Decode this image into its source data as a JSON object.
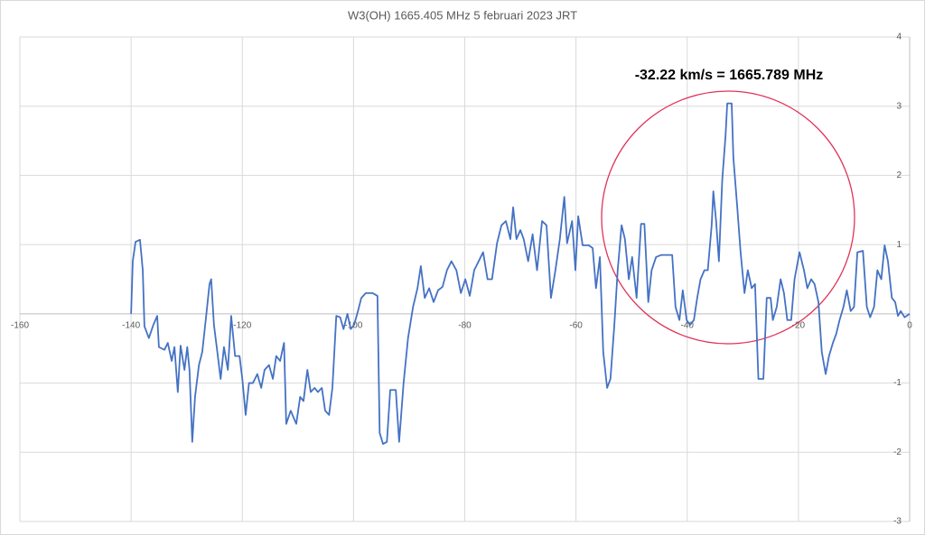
{
  "chart_data": {
    "type": "line",
    "title": "W3(OH) 1665.405 MHz 5 februari 2023 JRT",
    "annotation": "-32.22 km/s = 1665.789 MHz",
    "color": "#4472c4",
    "grid": true,
    "xlim": [
      -160,
      0
    ],
    "ylim": [
      -3,
      4
    ],
    "xticks": [
      -160,
      -140,
      -120,
      -100,
      -80,
      -60,
      -40,
      -20,
      0
    ],
    "yticks": [
      -3,
      -2,
      -1,
      1,
      2,
      3,
      4
    ],
    "x": [
      -140,
      -139.7,
      -139.2,
      -138.4,
      -137.9,
      -137.6,
      -136.8,
      -136,
      -135.3,
      -135,
      -134,
      -133.4,
      -132.7,
      -132.2,
      -131.6,
      -131.1,
      -130.4,
      -129.9,
      -129.5,
      -129,
      -128.5,
      -127.8,
      -127.2,
      -126.5,
      -125.9,
      -125.6,
      -125.1,
      -124.6,
      -123.9,
      -123.3,
      -122.6,
      -122,
      -121.3,
      -120.5,
      -120,
      -119.4,
      -118.8,
      -118.1,
      -117.3,
      -116.6,
      -116,
      -115.2,
      -114.5,
      -113.9,
      -113.2,
      -112.5,
      -112.1,
      -111.3,
      -110.3,
      -109.6,
      -109,
      -108.3,
      -107.7,
      -107,
      -106.4,
      -105.7,
      -105.1,
      -104.4,
      -103.8,
      -103.1,
      -102.4,
      -101.8,
      -101.1,
      -100.5,
      -99.9,
      -99.2,
      -98.6,
      -97.8,
      -96.6,
      -95.7,
      -95.3,
      -94.7,
      -94,
      -93.4,
      -92.4,
      -91.8,
      -91,
      -90.2,
      -89.3,
      -88.5,
      -87.9,
      -87.2,
      -86.4,
      -85.6,
      -84.8,
      -84,
      -83.2,
      -82.4,
      -81.5,
      -80.7,
      -79.9,
      -79.1,
      -78.3,
      -77.5,
      -76.7,
      -75.9,
      -75.1,
      -74.2,
      -73.4,
      -72.6,
      -71.8,
      -71.3,
      -70.7,
      -70,
      -69.4,
      -68.6,
      -67.8,
      -67,
      -66.1,
      -65.3,
      -64.5,
      -63.7,
      -62.9,
      -62.1,
      -61.6,
      -60.7,
      -60.1,
      -59.6,
      -58.8,
      -57.7,
      -57,
      -56.4,
      -55.7,
      -55.1,
      -54.4,
      -53.8,
      -53.1,
      -52.5,
      -51.8,
      -51.2,
      -50.5,
      -49.9,
      -49.1,
      -48.3,
      -47.7,
      -47,
      -46.4,
      -45.6,
      -44.7,
      -43.7,
      -42.7,
      -42.1,
      -41.4,
      -40.8,
      -40.1,
      -39.5,
      -38.8,
      -38.2,
      -37.6,
      -36.9,
      -36.3,
      -35.6,
      -35.3,
      -34.8,
      -34.3,
      -33.7,
      -33.1,
      -32.8,
      -32,
      -31.7,
      -31,
      -30.4,
      -29.7,
      -29.1,
      -28.4,
      -27.8,
      -27.2,
      -26.3,
      -25.7,
      -25,
      -24.6,
      -23.9,
      -23.2,
      -22.6,
      -22,
      -21.3,
      -20.7,
      -19.8,
      -19,
      -18.4,
      -17.7,
      -17.1,
      -16.4,
      -15.8,
      -15.1,
      -14.5,
      -13.8,
      -13.2,
      -12.6,
      -11.9,
      -11.3,
      -10.6,
      -10,
      -9.4,
      -8.4,
      -7.7,
      -7.1,
      -6.4,
      -5.8,
      -5.1,
      -4.5,
      -3.9,
      -3.2,
      -2.6,
      -2.1,
      -1.6,
      -0.9,
      0
    ],
    "values": [
      0,
      0.76,
      1.04,
      1.07,
      0.63,
      -0.18,
      -0.35,
      -0.16,
      -0.03,
      -0.48,
      -0.52,
      -0.42,
      -0.68,
      -0.48,
      -1.13,
      -0.46,
      -0.81,
      -0.48,
      -0.81,
      -1.85,
      -1.2,
      -0.74,
      -0.55,
      -0.03,
      0.43,
      0.5,
      -0.16,
      -0.48,
      -0.94,
      -0.48,
      -0.81,
      -0.03,
      -0.61,
      -0.61,
      -0.94,
      -1.46,
      -1,
      -1,
      -0.87,
      -1.07,
      -0.81,
      -0.74,
      -0.94,
      -0.61,
      -0.68,
      -0.42,
      -1.59,
      -1.4,
      -1.59,
      -1.2,
      -1.26,
      -0.81,
      -1.13,
      -1.07,
      -1.13,
      -1.07,
      -1.4,
      -1.46,
      -1.07,
      -0.03,
      -0.05,
      -0.22,
      0,
      -0.22,
      -0.16,
      0.04,
      0.23,
      0.3,
      0.3,
      0.26,
      -1.72,
      -1.88,
      -1.85,
      -1.1,
      -1.1,
      -1.85,
      -1,
      -0.35,
      0.1,
      0.37,
      0.69,
      0.23,
      0.37,
      0.17,
      0.34,
      0.39,
      0.63,
      0.76,
      0.63,
      0.3,
      0.5,
      0.26,
      0.63,
      0.76,
      0.89,
      0.5,
      0.5,
      1.02,
      1.28,
      1.34,
      1.08,
      1.54,
      1.08,
      1.21,
      1.08,
      0.76,
      1.15,
      0.63,
      1.34,
      1.28,
      0.23,
      0.63,
      1.08,
      1.69,
      1.02,
      1.34,
      0.63,
      1.41,
      0.99,
      0.99,
      0.95,
      0.37,
      0.82,
      -0.55,
      -1.07,
      -0.94,
      -0.16,
      0.63,
      1.28,
      1.08,
      0.5,
      0.82,
      0.23,
      1.3,
      1.3,
      0.17,
      0.63,
      0.82,
      0.85,
      0.85,
      0.85,
      0.1,
      -0.09,
      0.34,
      -0.09,
      -0.16,
      -0.09,
      0.23,
      0.5,
      0.63,
      0.63,
      1.28,
      1.77,
      1.34,
      0.76,
      1.93,
      2.58,
      3.04,
      3.04,
      2.26,
      1.54,
      0.89,
      0.3,
      0.63,
      0.37,
      0.43,
      -0.94,
      -0.94,
      0.23,
      0.23,
      -0.09,
      0.1,
      0.5,
      0.3,
      -0.09,
      -0.09,
      0.5,
      0.89,
      0.63,
      0.37,
      0.5,
      0.43,
      0.17,
      -0.55,
      -0.87,
      -0.61,
      -0.42,
      -0.29,
      -0.09,
      0.1,
      0.34,
      0.04,
      0.1,
      0.89,
      0.91,
      0.1,
      -0.05,
      0.1,
      0.63,
      0.5,
      0.99,
      0.76,
      0.23,
      0.17,
      -0.03,
      0.04,
      -0.05,
      0
    ]
  }
}
